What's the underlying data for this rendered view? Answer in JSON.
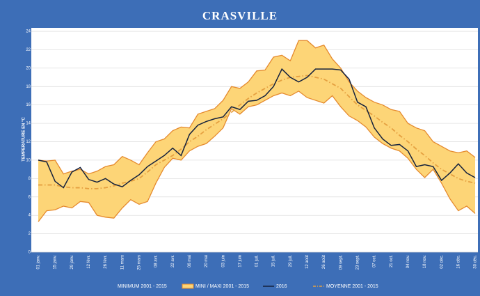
{
  "chart_data": {
    "type": "band-line",
    "title": "CRASVILLE",
    "y_label": "TEMPERATURE EN °C",
    "categories": [
      "01 janv.",
      null,
      "15 janv.",
      null,
      "29 janv.",
      null,
      "12 févr.",
      null,
      "26 févr.",
      null,
      "11 mars",
      null,
      "25 mars",
      null,
      "08 avr.",
      null,
      "22 avr.",
      null,
      "06 mai",
      null,
      "20 mai",
      null,
      "03 juin",
      null,
      "17 juin",
      null,
      "01 juil.",
      null,
      "15 juil.",
      null,
      "29 juil.",
      null,
      "12 août",
      null,
      "26 août",
      null,
      "09 sept.",
      null,
      "23 sept.",
      null,
      "07 oct.",
      null,
      "21 oct.",
      null,
      "04 nov.",
      null,
      "18 nov.",
      null,
      "02 déc.",
      null,
      "16 déc.",
      null,
      "30 déc."
    ],
    "series": [
      {
        "name": "MINIMUM 2001 - 2015",
        "role": "low",
        "color": "#e58a2e",
        "values": [
          3.3,
          4.5,
          4.6,
          5,
          4.8,
          5.5,
          5.4,
          4,
          3.8,
          3.7,
          4.8,
          5.7,
          5.2,
          5.5,
          7.5,
          9.2,
          10.2,
          10,
          11,
          11.5,
          11.8,
          12.6,
          13.5,
          15.6,
          15,
          15.8,
          16,
          16.5,
          17,
          17.3,
          17,
          17.5,
          16.8,
          16.5,
          16.2,
          17,
          15.8,
          14.8,
          14.3,
          13.6,
          12.5,
          11.8,
          11.3,
          11,
          10.2,
          9,
          8.1,
          9,
          7.5,
          5.8,
          4.5,
          5,
          4.2
        ]
      },
      {
        "name": "MINI / MAXI 2001 - 2015",
        "role": "band",
        "color": "#fdd577",
        "edge": "#e58a2e",
        "values": [
          10,
          9.9,
          10,
          8.5,
          8.8,
          9,
          8.5,
          8.8,
          9.3,
          9.5,
          10.4,
          10,
          9.5,
          10.8,
          12,
          12.3,
          13.2,
          13.6,
          13.5,
          15,
          15.3,
          15.6,
          16.5,
          18,
          17.8,
          18.5,
          19.7,
          19.8,
          21.2,
          21.4,
          20.8,
          23,
          23,
          22.2,
          22.5,
          21,
          20,
          18.5,
          17.5,
          16.8,
          16.3,
          16,
          15.5,
          15.3,
          14,
          13.5,
          13.2,
          12,
          11.5,
          11,
          10.8,
          11,
          10.3
        ]
      },
      {
        "name": "2016",
        "role": "line",
        "color": "#14213d",
        "values": [
          10,
          9.8,
          7.7,
          7,
          8.7,
          9.2,
          7.9,
          7.6,
          8,
          7.4,
          7.1,
          7.8,
          8.4,
          9.3,
          9.9,
          10.5,
          11.3,
          10.5,
          12.8,
          13.8,
          14.2,
          14.5,
          14.7,
          15.8,
          15.5,
          16.4,
          16.5,
          17,
          18,
          19.9,
          19,
          18.5,
          19,
          19.9,
          19.9,
          19.9,
          19.8,
          18.8,
          16.3,
          15.8,
          13.5,
          12.3,
          11.6,
          11.7,
          11,
          9.3,
          9.5,
          9.3,
          7.8,
          8.6,
          9.6,
          8.6,
          8.1
        ]
      },
      {
        "name": "MOYENNE 2001 - 2015",
        "role": "dashed",
        "color": "#e5a040",
        "values": [
          7.3,
          7.3,
          7.3,
          7.1,
          7,
          7,
          6.9,
          6.9,
          7,
          7.2,
          7.5,
          7.7,
          8,
          8.7,
          9.5,
          10,
          10.5,
          11.2,
          12,
          12.6,
          13.3,
          13.9,
          14.5,
          15.2,
          16,
          16.7,
          17.3,
          17.8,
          18.3,
          18.7,
          19,
          19.1,
          19.2,
          19,
          18.8,
          18.3,
          17.8,
          16.9,
          16,
          15.4,
          14.8,
          14.1,
          13.5,
          12.7,
          12,
          11.2,
          10.5,
          9.7,
          9,
          8.5,
          8,
          7.7,
          7.5
        ]
      }
    ],
    "ylim": [
      0,
      24
    ],
    "yticks": [
      0,
      2,
      4,
      6,
      8,
      10,
      12,
      14,
      16,
      18,
      20,
      22,
      24
    ],
    "grid": true
  }
}
